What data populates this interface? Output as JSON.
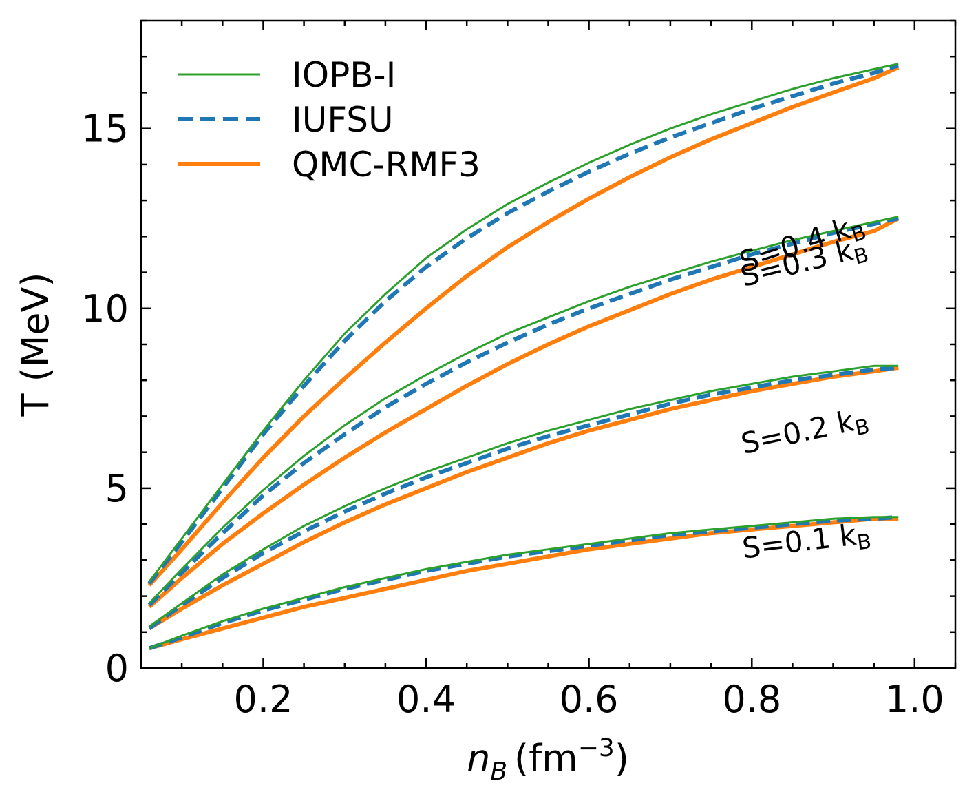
{
  "chart_data": {
    "type": "line",
    "xlabel": {
      "base": "n",
      "sub": "B",
      "unit_prefix": "(fm",
      "sup": "−3",
      "unit_suffix": ")"
    },
    "ylabel": "T (MeV)",
    "xlim": [
      0.05,
      1.05
    ],
    "ylim": [
      0,
      18
    ],
    "xticks": [
      0.2,
      0.4,
      0.6,
      0.8,
      1.0
    ],
    "xtick_labels": [
      "0.2",
      "0.4",
      "0.6",
      "0.8",
      "1.0"
    ],
    "yticks": [
      0,
      5,
      10,
      15
    ],
    "ytick_labels": [
      "0",
      "5",
      "10",
      "15"
    ],
    "x_minor_step": 0.05,
    "y_minor_step": 1,
    "grid": false,
    "legend_position": "upper-left",
    "legend": [
      {
        "label": "IOPB-I",
        "color": "#2ca02c",
        "style": "solid-thin"
      },
      {
        "label": "IUFSU",
        "color": "#1f77b4",
        "style": "dashed"
      },
      {
        "label": "QMC-RMF3",
        "color": "#ff7f0e",
        "style": "solid-thick"
      }
    ],
    "x": [
      0.06,
      0.1,
      0.15,
      0.2,
      0.25,
      0.3,
      0.35,
      0.4,
      0.45,
      0.5,
      0.55,
      0.6,
      0.65,
      0.7,
      0.75,
      0.8,
      0.85,
      0.9,
      0.95,
      0.98
    ],
    "groups": [
      {
        "annotation": {
          "prefix": "S=0.4 k",
          "sub": "B"
        },
        "series": [
          {
            "name": "IOPB-I",
            "values": [
              2.4,
              3.6,
              5.1,
              6.6,
              8.0,
              9.3,
              10.4,
              11.4,
              12.2,
              12.9,
              13.5,
              14.05,
              14.55,
              15.0,
              15.4,
              15.75,
              16.1,
              16.4,
              16.65,
              16.8
            ]
          },
          {
            "name": "IUFSU",
            "values": [
              2.35,
              3.5,
              5.0,
              6.5,
              7.85,
              9.1,
              10.2,
              11.15,
              11.95,
              12.65,
              13.25,
              13.8,
              14.3,
              14.75,
              15.15,
              15.55,
              15.9,
              16.25,
              16.55,
              16.75
            ]
          },
          {
            "name": "QMC-RMF3",
            "values": [
              2.3,
              3.3,
              4.6,
              5.85,
              7.0,
              8.05,
              9.05,
              10.0,
              10.9,
              11.7,
              12.4,
              13.05,
              13.65,
              14.2,
              14.7,
              15.15,
              15.6,
              16.0,
              16.4,
              16.7
            ]
          }
        ]
      },
      {
        "annotation": {
          "prefix": "S=0.3 k",
          "sub": "B"
        },
        "series": [
          {
            "name": "IOPB-I",
            "values": [
              1.8,
              2.75,
              3.9,
              4.95,
              5.9,
              6.75,
              7.5,
              8.15,
              8.75,
              9.3,
              9.75,
              10.2,
              10.6,
              10.95,
              11.3,
              11.6,
              11.9,
              12.15,
              12.4,
              12.55
            ]
          },
          {
            "name": "IUFSU",
            "values": [
              1.75,
              2.65,
              3.75,
              4.8,
              5.7,
              6.5,
              7.25,
              7.9,
              8.5,
              9.05,
              9.55,
              10.0,
              10.4,
              10.8,
              11.15,
              11.5,
              11.8,
              12.1,
              12.35,
              12.5
            ]
          },
          {
            "name": "QMC-RMF3",
            "values": [
              1.7,
              2.5,
              3.45,
              4.3,
              5.1,
              5.85,
              6.55,
              7.2,
              7.85,
              8.45,
              9.0,
              9.5,
              9.95,
              10.4,
              10.8,
              11.15,
              11.5,
              11.85,
              12.15,
              12.5
            ]
          }
        ]
      },
      {
        "annotation": {
          "prefix": "S=0.2 k",
          "sub": "B"
        },
        "series": [
          {
            "name": "IOPB-I",
            "values": [
              1.15,
              1.8,
              2.6,
              3.3,
              3.95,
              4.5,
              5.0,
              5.45,
              5.85,
              6.25,
              6.6,
              6.9,
              7.2,
              7.45,
              7.7,
              7.9,
              8.1,
              8.25,
              8.4,
              8.4
            ]
          },
          {
            "name": "IUFSU",
            "values": [
              1.1,
              1.75,
              2.5,
              3.2,
              3.8,
              4.35,
              4.85,
              5.3,
              5.7,
              6.1,
              6.45,
              6.75,
              7.05,
              7.35,
              7.6,
              7.8,
              8.0,
              8.15,
              8.3,
              8.35
            ]
          },
          {
            "name": "QMC-RMF3",
            "values": [
              1.1,
              1.65,
              2.3,
              2.9,
              3.5,
              4.05,
              4.55,
              5.0,
              5.45,
              5.85,
              6.25,
              6.6,
              6.9,
              7.2,
              7.45,
              7.7,
              7.9,
              8.1,
              8.25,
              8.35
            ]
          }
        ]
      },
      {
        "annotation": {
          "prefix": "S=0.1 k",
          "sub": "B"
        },
        "series": [
          {
            "name": "IOPB-I",
            "values": [
              0.55,
              0.9,
              1.3,
              1.65,
              1.95,
              2.25,
              2.5,
              2.75,
              2.95,
              3.15,
              3.3,
              3.45,
              3.6,
              3.75,
              3.85,
              3.95,
              4.05,
              4.15,
              4.2,
              4.2
            ]
          },
          {
            "name": "IUFSU",
            "values": [
              0.55,
              0.85,
              1.25,
              1.6,
              1.9,
              2.2,
              2.45,
              2.7,
              2.9,
              3.1,
              3.25,
              3.4,
              3.55,
              3.7,
              3.8,
              3.9,
              4.0,
              4.1,
              4.15,
              4.2
            ]
          },
          {
            "name": "QMC-RMF3",
            "values": [
              0.55,
              0.8,
              1.1,
              1.4,
              1.7,
              1.95,
              2.2,
              2.45,
              2.7,
              2.9,
              3.1,
              3.3,
              3.45,
              3.6,
              3.75,
              3.85,
              3.95,
              4.05,
              4.15,
              4.15
            ]
          }
        ]
      }
    ]
  }
}
